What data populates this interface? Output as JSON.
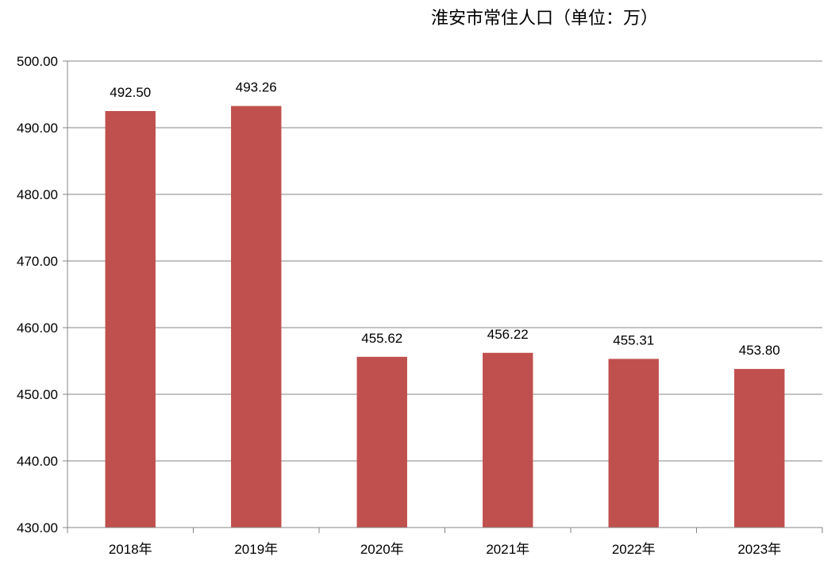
{
  "chart_data": {
    "type": "bar",
    "title": "淮安市常住人口（单位：万）",
    "categories": [
      "2018年",
      "2019年",
      "2020年",
      "2021年",
      "2022年",
      "2023年"
    ],
    "values": [
      492.5,
      493.26,
      455.62,
      456.22,
      455.31,
      453.8
    ],
    "value_labels": [
      "492.50",
      "493.26",
      "455.62",
      "456.22",
      "455.31",
      "453.80"
    ],
    "yticks": [
      "430.00",
      "440.00",
      "450.00",
      "460.00",
      "470.00",
      "480.00",
      "490.00",
      "500.00"
    ],
    "ylim": [
      430,
      500
    ],
    "ytick_step": 10,
    "xlabel": "",
    "ylabel": "",
    "grid": true,
    "legend": "none",
    "bar_color": "#c0504d",
    "grid_color": "#868686"
  }
}
